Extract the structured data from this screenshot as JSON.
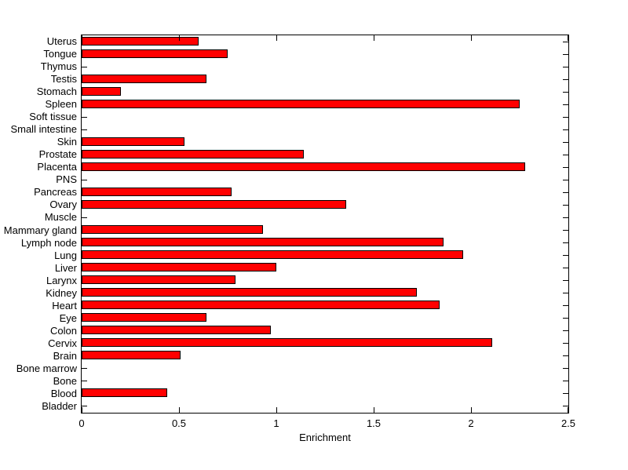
{
  "figure": {
    "background": "#ffffff",
    "bar_fill_color": "#ff0000",
    "bar_edge_color": "#000000",
    "axis_color": "#000000",
    "text_color": "#000000"
  },
  "chart_data": {
    "type": "bar",
    "orientation": "horizontal",
    "title": "",
    "xlabel": "Enrichment",
    "ylabel": "",
    "xlim": [
      0,
      2.5
    ],
    "x_ticks": [
      0,
      0.5,
      1,
      1.5,
      2,
      2.5
    ],
    "x_tick_labels": [
      "0",
      "0.5",
      "1",
      "1.5",
      "2",
      "2.5"
    ],
    "grid": false,
    "legend": "none",
    "categories_top_to_bottom": [
      "Uterus",
      "Tongue",
      "Thymus",
      "Testis",
      "Stomach",
      "Spleen",
      "Soft tissue",
      "Small intestine",
      "Skin",
      "Prostate",
      "Placenta",
      "PNS",
      "Pancreas",
      "Ovary",
      "Muscle",
      "Mammary gland",
      "Lymph node",
      "Lung",
      "Liver",
      "Larynx",
      "Kidney",
      "Heart",
      "Eye",
      "Colon",
      "Cervix",
      "Brain",
      "Bone marrow",
      "Bone",
      "Blood",
      "Bladder"
    ],
    "values": [
      0.6,
      0.75,
      0,
      0.64,
      0.2,
      2.25,
      0,
      0,
      0.53,
      1.14,
      2.28,
      0,
      0.77,
      1.36,
      0,
      0.93,
      1.86,
      1.96,
      1.0,
      0.79,
      1.72,
      1.84,
      0.64,
      0.97,
      2.11,
      0.51,
      0,
      0,
      0.44,
      0
    ]
  }
}
